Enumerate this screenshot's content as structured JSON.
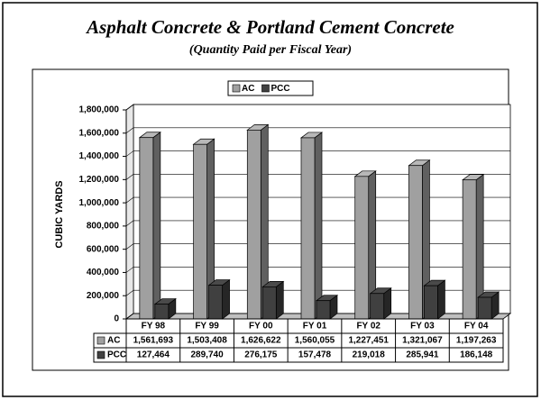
{
  "chart_data": {
    "type": "bar3d",
    "title": "Asphalt Concrete & Portland Cement Concrete",
    "subtitle": "(Quantity Paid per Fiscal Year)",
    "y_label": "CUBIC YARDS",
    "categories": [
      "FY 98",
      "FY 99",
      "FY 00",
      "FY 01",
      "FY 02",
      "FY 03",
      "FY 04"
    ],
    "series": [
      {
        "name": "AC",
        "color": "#a0a0a0",
        "values": [
          1561693,
          1503408,
          1626622,
          1560055,
          1227451,
          1321067,
          1197263
        ],
        "value_labels": [
          "1,561,693",
          "1,503,408",
          "1,626,622",
          "1,560,055",
          "1,227,451",
          "1,321,067",
          "1,197,263"
        ]
      },
      {
        "name": "PCC",
        "color": "#404040",
        "values": [
          127464,
          289740,
          276175,
          157478,
          219018,
          285941,
          186148
        ],
        "value_labels": [
          "127,464",
          "289,740",
          "276,175",
          "157,478",
          "219,018",
          "285,941",
          "186,148"
        ]
      }
    ],
    "ylim": [
      0,
      1800000
    ],
    "yticks": [
      0,
      {
        "value": 200000,
        "label": "200,000"
      },
      {
        "value": 400000,
        "label": "400,000"
      },
      {
        "value": 600000,
        "label": "600,000"
      },
      {
        "value": 800000,
        "label": "800,000"
      },
      {
        "value": 1000000,
        "label": "1,000,000"
      },
      {
        "value": 1200000,
        "label": "1,200,000"
      },
      {
        "value": 1400000,
        "label": "1,400,000"
      },
      {
        "value": 1600000,
        "label": "1,600,000"
      },
      {
        "value": 1800000,
        "label": "1,800,000"
      }
    ],
    "grid": true,
    "legend": "top"
  }
}
